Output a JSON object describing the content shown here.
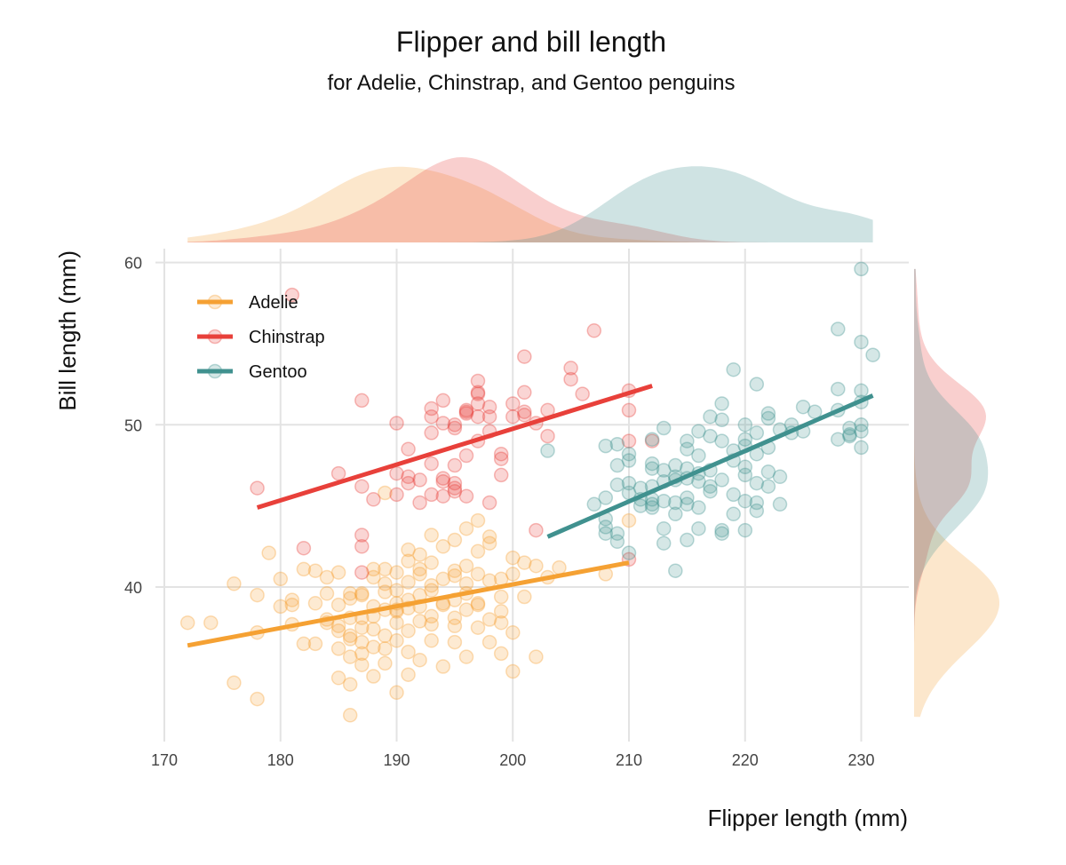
{
  "chart_data": {
    "type": "scatter",
    "title": "Flipper and bill length",
    "subtitle": "for Adelie, Chinstrap, and Gentoo penguins",
    "xlabel": "Flipper length (mm)",
    "ylabel": "Bill length (mm)",
    "xlim": [
      170,
      234
    ],
    "ylim": [
      31,
      61
    ],
    "x_ticks": [
      170,
      180,
      190,
      200,
      210,
      220,
      230
    ],
    "y_ticks": [
      40,
      50,
      60
    ],
    "grid": true,
    "legend_position": "top-left",
    "marginal_density": true,
    "series": [
      {
        "name": "Adelie",
        "color": "#f5a133",
        "trend": [
          [
            172,
            36.4
          ],
          [
            210,
            41.5
          ]
        ],
        "points": [
          [
            172,
            37.8
          ],
          [
            174,
            37.8
          ],
          [
            176,
            40.2
          ],
          [
            178,
            39.5
          ],
          [
            178,
            37.2
          ],
          [
            178,
            33.1
          ],
          [
            179,
            42.1
          ],
          [
            180,
            38.8
          ],
          [
            180,
            40.5
          ],
          [
            181,
            39.2
          ],
          [
            181,
            37.7
          ],
          [
            181,
            38.9
          ],
          [
            182,
            36.5
          ],
          [
            182,
            41.1
          ],
          [
            183,
            36.5
          ],
          [
            183,
            41.0
          ],
          [
            183,
            39.0
          ],
          [
            184,
            40.6
          ],
          [
            184,
            37.8
          ],
          [
            184,
            38.0
          ],
          [
            184,
            39.6
          ],
          [
            185,
            34.4
          ],
          [
            185,
            36.2
          ],
          [
            185,
            37.6
          ],
          [
            185,
            40.9
          ],
          [
            185,
            38.9
          ],
          [
            185,
            37.3
          ],
          [
            186,
            35.7
          ],
          [
            186,
            38.1
          ],
          [
            186,
            39.3
          ],
          [
            186,
            36.8
          ],
          [
            186,
            37.0
          ],
          [
            186,
            39.6
          ],
          [
            186,
            34.0
          ],
          [
            187,
            35.2
          ],
          [
            187,
            36.6
          ],
          [
            187,
            38.1
          ],
          [
            187,
            39.6
          ],
          [
            187,
            39.5
          ],
          [
            187,
            37.5
          ],
          [
            187,
            35.9
          ],
          [
            188,
            34.5
          ],
          [
            188,
            36.3
          ],
          [
            188,
            38.8
          ],
          [
            188,
            41.1
          ],
          [
            188,
            38.2
          ],
          [
            188,
            37.4
          ],
          [
            188,
            40.6
          ],
          [
            189,
            35.3
          ],
          [
            189,
            37.0
          ],
          [
            189,
            38.6
          ],
          [
            189,
            39.7
          ],
          [
            189,
            41.1
          ],
          [
            189,
            36.2
          ],
          [
            189,
            40.2
          ],
          [
            190,
            38.6
          ],
          [
            190,
            37.8
          ],
          [
            190,
            39.0
          ],
          [
            190,
            40.9
          ],
          [
            190,
            38.5
          ],
          [
            190,
            36.7
          ],
          [
            190,
            39.8
          ],
          [
            190,
            33.5
          ],
          [
            191,
            34.6
          ],
          [
            191,
            36.0
          ],
          [
            191,
            38.7
          ],
          [
            191,
            40.3
          ],
          [
            191,
            41.6
          ],
          [
            191,
            39.2
          ],
          [
            191,
            37.3
          ],
          [
            191,
            42.3
          ],
          [
            192,
            35.5
          ],
          [
            192,
            38.8
          ],
          [
            192,
            40.8
          ],
          [
            192,
            41.1
          ],
          [
            192,
            39.5
          ],
          [
            192,
            37.9
          ],
          [
            192,
            42.0
          ],
          [
            193,
            36.7
          ],
          [
            193,
            38.2
          ],
          [
            193,
            39.8
          ],
          [
            193,
            41.5
          ],
          [
            193,
            40.1
          ],
          [
            193,
            37.7
          ],
          [
            193,
            43.2
          ],
          [
            194,
            35.1
          ],
          [
            194,
            38.9
          ],
          [
            194,
            40.5
          ],
          [
            194,
            39.0
          ],
          [
            194,
            42.5
          ],
          [
            195,
            36.6
          ],
          [
            195,
            38.1
          ],
          [
            195,
            40.7
          ],
          [
            195,
            41.0
          ],
          [
            195,
            37.6
          ],
          [
            195,
            42.9
          ],
          [
            195,
            39.2
          ],
          [
            196,
            35.7
          ],
          [
            196,
            38.6
          ],
          [
            196,
            40.2
          ],
          [
            196,
            43.6
          ],
          [
            196,
            41.3
          ],
          [
            196,
            39.6
          ],
          [
            197,
            37.5
          ],
          [
            197,
            38.9
          ],
          [
            197,
            40.8
          ],
          [
            197,
            42.2
          ],
          [
            197,
            44.1
          ],
          [
            197,
            39.0
          ],
          [
            198,
            36.6
          ],
          [
            198,
            38.0
          ],
          [
            198,
            40.4
          ],
          [
            198,
            42.7
          ],
          [
            198,
            43.1
          ],
          [
            199,
            35.9
          ],
          [
            199,
            37.8
          ],
          [
            199,
            38.5
          ],
          [
            199,
            39.4
          ],
          [
            199,
            40.5
          ],
          [
            200,
            37.2
          ],
          [
            200,
            40.8
          ],
          [
            200,
            41.8
          ],
          [
            200,
            34.8
          ],
          [
            201,
            39.4
          ],
          [
            201,
            41.5
          ],
          [
            202,
            35.7
          ],
          [
            202,
            41.3
          ],
          [
            203,
            40.6
          ],
          [
            204,
            41.2
          ],
          [
            208,
            40.8
          ],
          [
            210,
            44.1
          ],
          [
            176,
            34.1
          ],
          [
            186,
            32.1
          ],
          [
            189,
            45.8
          ]
        ]
      },
      {
        "name": "Chinstrap",
        "color": "#e8403a",
        "trend": [
          [
            178,
            44.9
          ],
          [
            212,
            52.4
          ]
        ],
        "points": [
          [
            178,
            46.1
          ],
          [
            181,
            58.0
          ],
          [
            182,
            42.4
          ],
          [
            185,
            47.0
          ],
          [
            187,
            51.5
          ],
          [
            187,
            46.2
          ],
          [
            187,
            42.5
          ],
          [
            187,
            43.2
          ],
          [
            187,
            40.9
          ],
          [
            188,
            45.4
          ],
          [
            190,
            47.0
          ],
          [
            190,
            50.1
          ],
          [
            190,
            45.7
          ],
          [
            191,
            48.5
          ],
          [
            191,
            46.4
          ],
          [
            191,
            46.8
          ],
          [
            192,
            45.2
          ],
          [
            192,
            46.6
          ],
          [
            193,
            47.6
          ],
          [
            193,
            50.5
          ],
          [
            193,
            51.0
          ],
          [
            193,
            45.7
          ],
          [
            193,
            49.5
          ],
          [
            194,
            46.5
          ],
          [
            194,
            50.1
          ],
          [
            194,
            51.5
          ],
          [
            194,
            46.7
          ],
          [
            194,
            45.6
          ],
          [
            195,
            49.8
          ],
          [
            195,
            47.5
          ],
          [
            195,
            46.4
          ],
          [
            195,
            50.0
          ],
          [
            195,
            46.1
          ],
          [
            195,
            45.9
          ],
          [
            196,
            50.9
          ],
          [
            196,
            48.1
          ],
          [
            196,
            50.7
          ],
          [
            196,
            50.8
          ],
          [
            196,
            45.6
          ],
          [
            197,
            51.3
          ],
          [
            197,
            52.0
          ],
          [
            197,
            51.9
          ],
          [
            197,
            52.7
          ],
          [
            197,
            50.5
          ],
          [
            197,
            49.0
          ],
          [
            198,
            51.1
          ],
          [
            198,
            49.6
          ],
          [
            198,
            50.5
          ],
          [
            198,
            45.2
          ],
          [
            199,
            47.9
          ],
          [
            199,
            48.2
          ],
          [
            199,
            46.9
          ],
          [
            200,
            50.5
          ],
          [
            200,
            51.3
          ],
          [
            201,
            52.0
          ],
          [
            201,
            50.8
          ],
          [
            201,
            54.2
          ],
          [
            201,
            50.6
          ],
          [
            202,
            50.1
          ],
          [
            202,
            43.5
          ],
          [
            203,
            49.3
          ],
          [
            203,
            50.9
          ],
          [
            205,
            53.5
          ],
          [
            205,
            52.8
          ],
          [
            206,
            51.9
          ],
          [
            207,
            55.8
          ],
          [
            210,
            49.0
          ],
          [
            210,
            52.1
          ],
          [
            210,
            50.9
          ],
          [
            212,
            49.0
          ],
          [
            210,
            41.7
          ]
        ]
      },
      {
        "name": "Gentoo",
        "color": "#40918f",
        "trend": [
          [
            203,
            43.1
          ],
          [
            231,
            51.8
          ]
        ],
        "points": [
          [
            203,
            48.4
          ],
          [
            207,
            45.1
          ],
          [
            208,
            43.3
          ],
          [
            208,
            43.7
          ],
          [
            208,
            44.2
          ],
          [
            208,
            45.5
          ],
          [
            208,
            48.7
          ],
          [
            209,
            42.8
          ],
          [
            209,
            43.3
          ],
          [
            209,
            47.5
          ],
          [
            209,
            46.3
          ],
          [
            209,
            48.8
          ],
          [
            210,
            46.4
          ],
          [
            210,
            42.1
          ],
          [
            210,
            45.8
          ],
          [
            210,
            47.8
          ],
          [
            210,
            48.2
          ],
          [
            211,
            45.4
          ],
          [
            211,
            46.1
          ],
          [
            211,
            45.0
          ],
          [
            212,
            45.4
          ],
          [
            212,
            46.2
          ],
          [
            212,
            47.3
          ],
          [
            212,
            47.6
          ],
          [
            212,
            45.1
          ],
          [
            212,
            44.9
          ],
          [
            212,
            49.1
          ],
          [
            213,
            42.7
          ],
          [
            213,
            45.3
          ],
          [
            213,
            47.2
          ],
          [
            213,
            49.8
          ],
          [
            213,
            46.5
          ],
          [
            213,
            43.6
          ],
          [
            214,
            46.6
          ],
          [
            214,
            44.5
          ],
          [
            214,
            45.2
          ],
          [
            214,
            46.8
          ],
          [
            214,
            47.5
          ],
          [
            214,
            41.0
          ],
          [
            215,
            42.9
          ],
          [
            215,
            45.5
          ],
          [
            215,
            46.7
          ],
          [
            215,
            47.3
          ],
          [
            215,
            48.5
          ],
          [
            215,
            45.1
          ],
          [
            215,
            49.0
          ],
          [
            216,
            44.9
          ],
          [
            216,
            46.5
          ],
          [
            216,
            48.1
          ],
          [
            216,
            49.6
          ],
          [
            216,
            47.0
          ],
          [
            216,
            43.6
          ],
          [
            217,
            45.9
          ],
          [
            217,
            47.2
          ],
          [
            217,
            49.3
          ],
          [
            217,
            50.5
          ],
          [
            217,
            46.2
          ],
          [
            218,
            43.3
          ],
          [
            218,
            46.6
          ],
          [
            218,
            49.0
          ],
          [
            218,
            50.3
          ],
          [
            218,
            51.3
          ],
          [
            218,
            43.5
          ],
          [
            219,
            44.5
          ],
          [
            219,
            45.7
          ],
          [
            219,
            47.8
          ],
          [
            219,
            48.4
          ],
          [
            219,
            53.4
          ],
          [
            220,
            43.5
          ],
          [
            220,
            45.3
          ],
          [
            220,
            46.9
          ],
          [
            220,
            48.7
          ],
          [
            220,
            49.1
          ],
          [
            220,
            50.0
          ],
          [
            220,
            47.4
          ],
          [
            221,
            45.2
          ],
          [
            221,
            46.4
          ],
          [
            221,
            48.2
          ],
          [
            221,
            49.5
          ],
          [
            221,
            52.5
          ],
          [
            221,
            44.7
          ],
          [
            222,
            46.2
          ],
          [
            222,
            47.1
          ],
          [
            222,
            48.6
          ],
          [
            222,
            50.4
          ],
          [
            222,
            50.7
          ],
          [
            223,
            45.1
          ],
          [
            223,
            46.8
          ],
          [
            223,
            49.7
          ],
          [
            224,
            49.5
          ],
          [
            224,
            50.0
          ],
          [
            225,
            49.6
          ],
          [
            225,
            51.1
          ],
          [
            226,
            50.8
          ],
          [
            228,
            55.9
          ],
          [
            228,
            50.9
          ],
          [
            228,
            49.1
          ],
          [
            228,
            52.2
          ],
          [
            229,
            49.3
          ],
          [
            229,
            49.8
          ],
          [
            230,
            50.0
          ],
          [
            230,
            51.4
          ],
          [
            230,
            55.1
          ],
          [
            230,
            48.6
          ],
          [
            230,
            59.6
          ],
          [
            230,
            52.1
          ],
          [
            231,
            54.3
          ],
          [
            230,
            49.6
          ],
          [
            229,
            49.4
          ]
        ]
      }
    ]
  }
}
